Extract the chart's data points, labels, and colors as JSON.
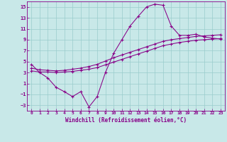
{
  "xlabel": "Windchill (Refroidissement éolien,°C)",
  "line_color": "#880088",
  "bg_color": "#c8e8e8",
  "grid_color": "#99cccc",
  "xlim": [
    -0.5,
    23.5
  ],
  "ylim": [
    -4,
    16
  ],
  "xticks": [
    0,
    1,
    2,
    3,
    4,
    5,
    6,
    7,
    8,
    9,
    10,
    11,
    12,
    13,
    14,
    15,
    16,
    17,
    18,
    19,
    20,
    21,
    22,
    23
  ],
  "yticks": [
    -3,
    -1,
    1,
    3,
    5,
    7,
    9,
    11,
    13,
    15
  ],
  "line1_x": [
    0,
    1,
    2,
    3,
    4,
    5,
    6,
    7,
    8,
    9,
    10,
    11,
    12,
    13,
    14,
    15,
    16,
    17,
    18,
    19,
    20,
    21,
    22,
    23
  ],
  "line1_y": [
    4.5,
    3.0,
    2.0,
    0.3,
    -0.5,
    -1.4,
    -0.5,
    -3.3,
    -1.4,
    3.0,
    6.5,
    9.0,
    11.5,
    13.3,
    15.0,
    15.5,
    15.3,
    11.5,
    9.8,
    9.8,
    10.0,
    9.5,
    9.3,
    9.1
  ],
  "line2_x": [
    0,
    1,
    2,
    3,
    4,
    5,
    6,
    7,
    8,
    9,
    10,
    11,
    12,
    13,
    14,
    15,
    16,
    17,
    18,
    19,
    20,
    21,
    22,
    23
  ],
  "line2_y": [
    3.8,
    3.5,
    3.4,
    3.3,
    3.4,
    3.6,
    3.8,
    4.1,
    4.5,
    5.1,
    5.7,
    6.2,
    6.7,
    7.2,
    7.7,
    8.2,
    8.7,
    9.0,
    9.2,
    9.4,
    9.6,
    9.7,
    9.8,
    9.9
  ],
  "line3_x": [
    0,
    1,
    2,
    3,
    4,
    5,
    6,
    7,
    8,
    9,
    10,
    11,
    12,
    13,
    14,
    15,
    16,
    17,
    18,
    19,
    20,
    21,
    22,
    23
  ],
  "line3_y": [
    3.3,
    3.1,
    3.1,
    3.0,
    3.1,
    3.2,
    3.4,
    3.6,
    3.9,
    4.4,
    4.9,
    5.4,
    5.9,
    6.4,
    6.9,
    7.4,
    7.9,
    8.2,
    8.5,
    8.7,
    8.9,
    9.0,
    9.1,
    9.2
  ]
}
